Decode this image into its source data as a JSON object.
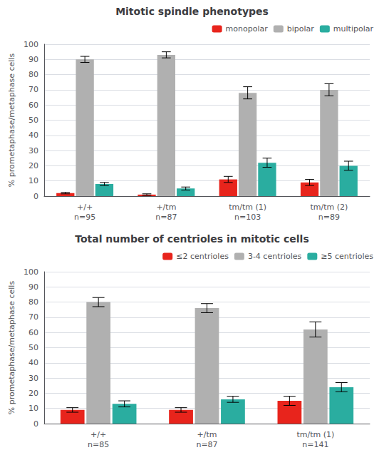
{
  "chart_data": [
    {
      "type": "bar",
      "title": "Mitotic spindle phenotypes",
      "ylabel": "% prometaphase/metaphase cells",
      "categories": [
        "+/+\nn=95",
        "+/tm\nn=87",
        "tm/tm (1)\nn=103",
        "tm/tm (2)\nn=89"
      ],
      "series": [
        {
          "name": "monopolar",
          "color": "#e8241c",
          "values": [
            2,
            1,
            11,
            9
          ],
          "errors": [
            0.5,
            0.5,
            2,
            2
          ]
        },
        {
          "name": "bipolar",
          "color": "#b0b0b0",
          "values": [
            90,
            93,
            68,
            70
          ],
          "errors": [
            2,
            2,
            4,
            4
          ]
        },
        {
          "name": "multipolar",
          "color": "#2aada0",
          "values": [
            8,
            5,
            22,
            20
          ],
          "errors": [
            1,
            1,
            3,
            3
          ]
        }
      ],
      "ylim": [
        0,
        100
      ],
      "yticks": [
        0,
        10,
        20,
        30,
        40,
        50,
        60,
        70,
        80,
        90,
        100
      ],
      "grid": true,
      "legend": "upper right"
    },
    {
      "type": "bar",
      "title": "Total number of centrioles in mitotic cells",
      "ylabel": "% prometaphase/metaphase cells",
      "categories": [
        "+/+\nn=85",
        "+/tm\nn=87",
        "tm/tm (1)\nn=141"
      ],
      "series": [
        {
          "name": "≤2 centrioles",
          "color": "#e8241c",
          "values": [
            9,
            9,
            15
          ],
          "errors": [
            1.5,
            1.5,
            3
          ]
        },
        {
          "name": "3-4 centrioles",
          "color": "#b0b0b0",
          "values": [
            80,
            76,
            62
          ],
          "errors": [
            3,
            3,
            5
          ]
        },
        {
          "name": "≥5 centrioles",
          "color": "#2aada0",
          "values": [
            13,
            16,
            24
          ],
          "errors": [
            2,
            2,
            3
          ]
        }
      ],
      "ylim": [
        0,
        100
      ],
      "yticks": [
        0,
        10,
        20,
        30,
        40,
        50,
        60,
        70,
        80,
        90,
        100
      ],
      "grid": true,
      "legend": "upper right"
    }
  ]
}
